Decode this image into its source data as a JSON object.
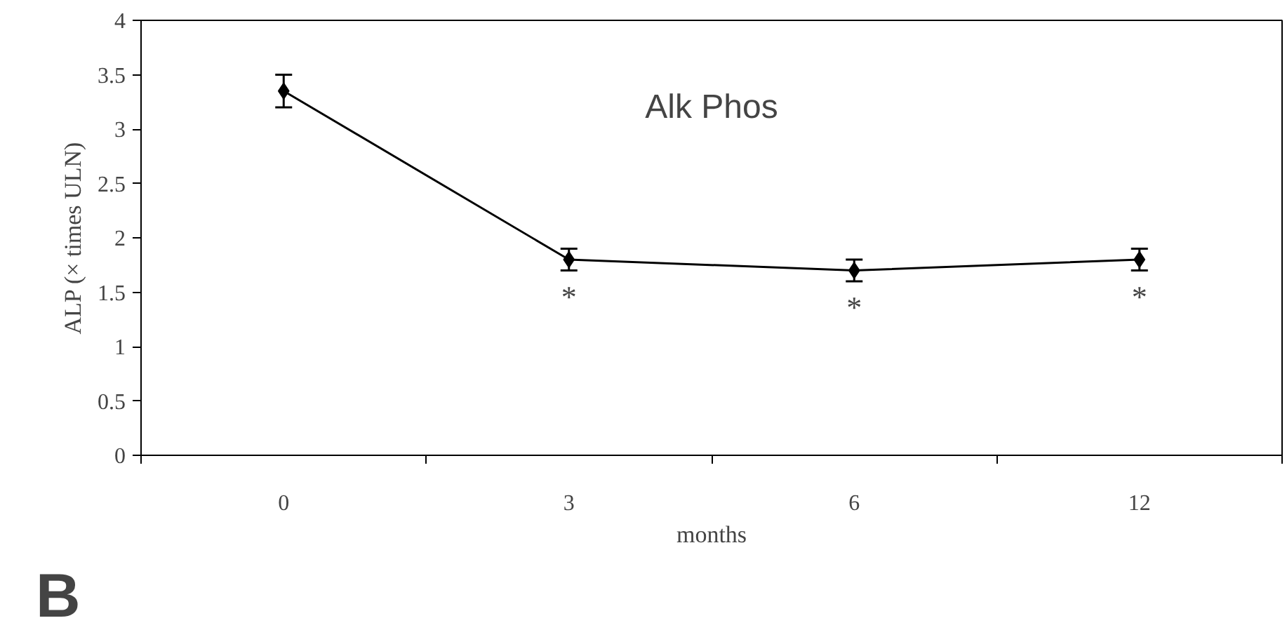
{
  "chart_data": {
    "type": "line",
    "categories": [
      "0",
      "3",
      "6",
      "12"
    ],
    "series": [
      {
        "color": "#000000",
        "values": [
          3.35,
          1.8,
          1.7,
          1.8
        ],
        "errors": [
          0.15,
          0.1,
          0.1,
          0.1
        ]
      }
    ],
    "ylim": [
      0,
      4
    ],
    "yticks": [
      0,
      0.5,
      1,
      1.5,
      2,
      2.5,
      3,
      3.5,
      4
    ],
    "ylabel": "ALP (× times ULN)",
    "xlabel": "months",
    "marker": "diamond",
    "line_style": "solid",
    "grid": false,
    "annotations": [
      "Alk Phos",
      "*",
      "*",
      "*",
      "B"
    ]
  }
}
